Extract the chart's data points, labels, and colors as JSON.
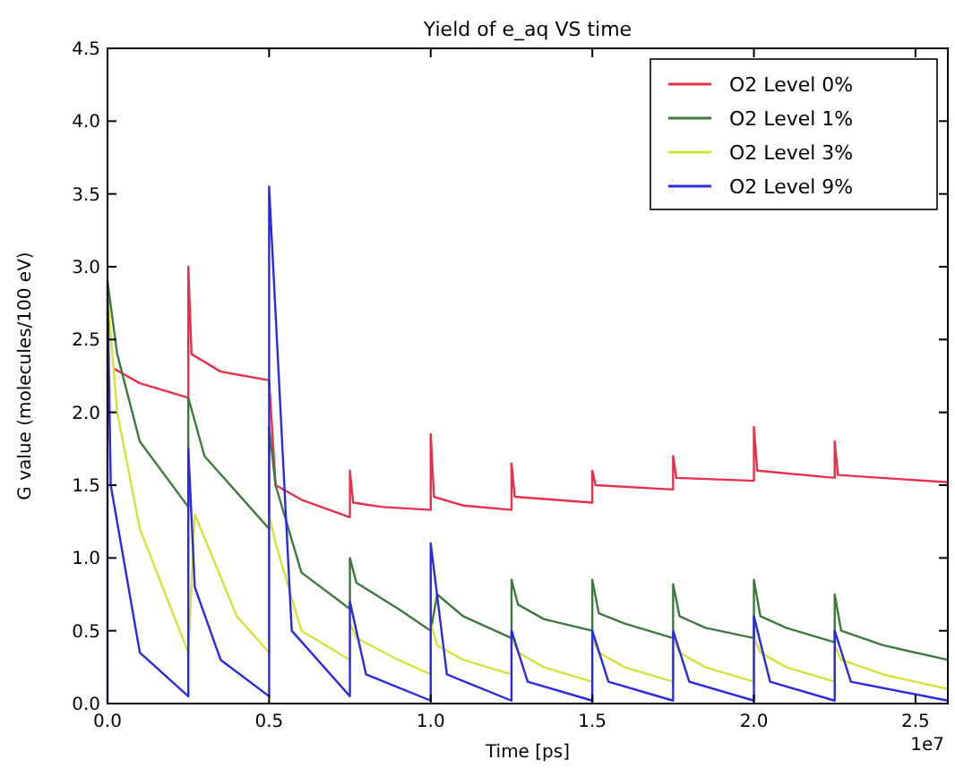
{
  "chart_data": {
    "type": "line",
    "title": "Yield of e_aq VS time",
    "xlabel": "Time [ps]",
    "ylabel": "G value (molecules/100 eV)",
    "annotations": [
      "1e7"
    ],
    "xlim": [
      0,
      2.6
    ],
    "xticks": [
      {
        "value": 0,
        "label": "0.0"
      },
      0.5,
      {
        "value": 1,
        "label": "1.0"
      },
      1.5,
      {
        "value": 2,
        "label": "2.0"
      },
      2.5
    ],
    "ylim": [
      0,
      4.5
    ],
    "yticks": [
      {
        "value": 0,
        "label": "0.0"
      },
      0.5,
      {
        "value": 1,
        "label": "1.0"
      },
      1.5,
      {
        "value": 2,
        "label": "2.0"
      },
      2.5,
      {
        "value": 3,
        "label": "3.0"
      },
      3.5,
      {
        "value": 4,
        "label": "4.0"
      },
      4.5
    ],
    "grid": false,
    "legend": "top right",
    "marker": "none",
    "line_style": "solid",
    "series": [
      {
        "name": "O2 Level 0%",
        "color": "#e8304a",
        "x": [
          0.02,
          0.1,
          0.25,
          0.25,
          0.26,
          0.35,
          0.5,
          0.52,
          0.6,
          0.75,
          0.75,
          0.76,
          0.85,
          1.0,
          1.0,
          1.01,
          1.1,
          1.25,
          1.25,
          1.26,
          1.5,
          1.5,
          1.51,
          1.75,
          1.75,
          1.76,
          2.0,
          2.0,
          2.01,
          2.25,
          2.25,
          2.26,
          2.6
        ],
        "values": [
          2.3,
          2.2,
          2.1,
          3.0,
          2.4,
          2.28,
          2.22,
          1.5,
          1.4,
          1.28,
          1.6,
          1.38,
          1.35,
          1.33,
          1.85,
          1.42,
          1.36,
          1.33,
          1.65,
          1.42,
          1.38,
          1.6,
          1.5,
          1.47,
          1.7,
          1.55,
          1.53,
          1.9,
          1.6,
          1.55,
          1.8,
          1.57,
          1.52
        ]
      },
      {
        "name": "O2 Level 1%",
        "color": "#3c7a3c",
        "x": [
          0,
          0.03,
          0.1,
          0.25,
          0.25,
          0.3,
          0.4,
          0.5,
          0.5,
          0.52,
          0.6,
          0.75,
          0.75,
          0.77,
          0.9,
          1.0,
          1.02,
          1.1,
          1.25,
          1.25,
          1.27,
          1.35,
          1.5,
          1.5,
          1.52,
          1.6,
          1.75,
          1.75,
          1.77,
          1.85,
          2.0,
          2.0,
          2.02,
          2.1,
          2.25,
          2.25,
          2.27,
          2.4,
          2.6
        ],
        "values": [
          2.9,
          2.4,
          1.8,
          1.35,
          2.1,
          1.7,
          1.45,
          1.2,
          1.9,
          1.5,
          0.9,
          0.65,
          1.0,
          0.83,
          0.65,
          0.5,
          0.75,
          0.6,
          0.45,
          0.85,
          0.68,
          0.58,
          0.5,
          0.85,
          0.62,
          0.55,
          0.45,
          0.82,
          0.6,
          0.52,
          0.45,
          0.85,
          0.6,
          0.52,
          0.42,
          0.75,
          0.5,
          0.4,
          0.3
        ]
      },
      {
        "name": "O2 Level 3%",
        "color": "#d4e23a",
        "x": [
          0,
          0.03,
          0.1,
          0.25,
          0.27,
          0.4,
          0.5,
          0.5,
          0.52,
          0.6,
          0.75,
          0.75,
          0.77,
          0.9,
          1.0,
          1.0,
          1.02,
          1.1,
          1.25,
          1.25,
          1.27,
          1.35,
          1.5,
          1.5,
          1.52,
          1.6,
          1.75,
          1.75,
          1.77,
          1.85,
          2.0,
          2.0,
          2.02,
          2.1,
          2.25,
          2.25,
          2.27,
          2.4,
          2.6
        ],
        "values": [
          2.8,
          2.0,
          1.2,
          0.35,
          1.3,
          0.6,
          0.35,
          1.3,
          1.1,
          0.5,
          0.3,
          0.55,
          0.45,
          0.3,
          0.2,
          0.55,
          0.4,
          0.3,
          0.2,
          0.45,
          0.35,
          0.25,
          0.15,
          0.45,
          0.35,
          0.25,
          0.15,
          0.45,
          0.35,
          0.25,
          0.15,
          0.45,
          0.35,
          0.25,
          0.15,
          0.4,
          0.3,
          0.2,
          0.1
        ]
      },
      {
        "name": "O2 Level 9%",
        "color": "#2a2ae0",
        "x": [
          0,
          0,
          0.01,
          0.1,
          0.25,
          0.25,
          0.27,
          0.35,
          0.5,
          0.5,
          0.57,
          0.75,
          0.75,
          0.8,
          1.0,
          1.0,
          1.05,
          1.25,
          1.25,
          1.3,
          1.5,
          1.5,
          1.55,
          1.75,
          1.75,
          1.8,
          2.0,
          2.0,
          2.05,
          2.25,
          2.25,
          2.3,
          2.6
        ],
        "values": [
          0,
          2.9,
          1.5,
          0.35,
          0.05,
          1.75,
          0.8,
          0.3,
          0.05,
          3.55,
          0.5,
          0.05,
          0.7,
          0.2,
          0.02,
          1.1,
          0.2,
          0.02,
          0.5,
          0.15,
          0.02,
          0.5,
          0.15,
          0.02,
          0.5,
          0.15,
          0.02,
          0.6,
          0.15,
          0.02,
          0.5,
          0.15,
          0.02
        ]
      }
    ]
  }
}
